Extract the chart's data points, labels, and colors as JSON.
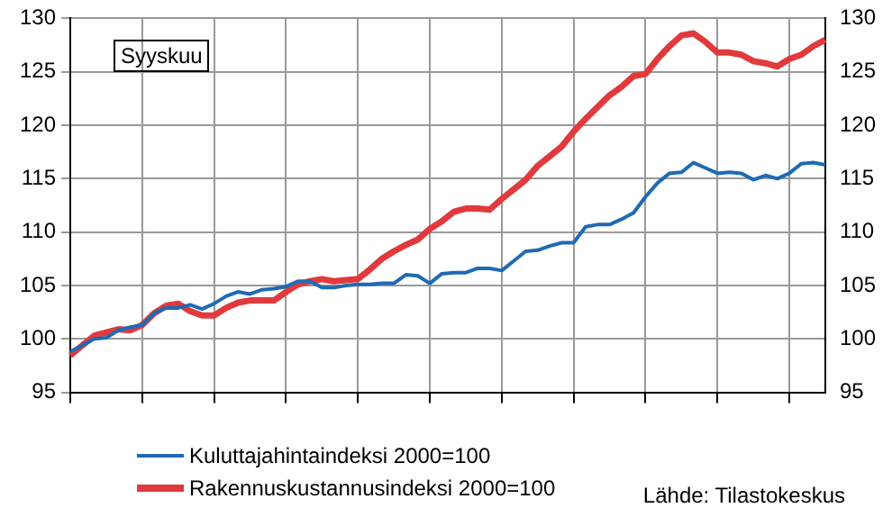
{
  "chart_data": {
    "type": "line",
    "categories": [
      null,
      null,
      null,
      null,
      null,
      null,
      null,
      null,
      null,
      null,
      null,
      null,
      null,
      null,
      null,
      null,
      null,
      null,
      null,
      null,
      null,
      null,
      null,
      null,
      null,
      null,
      null,
      null,
      null,
      null,
      null,
      null,
      null,
      null,
      null,
      null,
      null,
      null,
      null,
      null,
      null,
      null,
      null,
      null,
      null,
      null,
      null,
      null,
      null,
      null,
      null,
      null,
      null,
      null,
      null,
      null,
      null,
      null,
      null,
      null,
      null,
      null,
      null,
      null
    ],
    "series": [
      {
        "name": "Kuluttajahintaindeksi 2000=100",
        "color": "#1f6ab4",
        "values": [
          98.8,
          99.4,
          100.0,
          100.1,
          100.8,
          101.1,
          101.3,
          102.4,
          102.9,
          102.9,
          103.2,
          102.8,
          103.3,
          104.0,
          104.4,
          104.2,
          104.6,
          104.7,
          104.9,
          105.4,
          105.4,
          104.8,
          104.8,
          105.0,
          105.1,
          105.1,
          105.2,
          105.2,
          106.0,
          105.9,
          105.2,
          106.1,
          106.2,
          106.2,
          106.6,
          106.6,
          106.4,
          107.3,
          108.2,
          108.3,
          108.7,
          109.0,
          109.0,
          110.5,
          110.7,
          110.7,
          111.2,
          111.8,
          113.3,
          114.6,
          115.5,
          115.6,
          116.5,
          116.0,
          115.5,
          115.6,
          115.5,
          114.9,
          115.3,
          115.0,
          115.5,
          116.4,
          116.5,
          116.3
        ]
      },
      {
        "name": "Rakennuskustannusindeksi 2000=100",
        "color": "#e03a3c",
        "values": [
          98.45,
          99.4,
          100.3,
          100.6,
          100.9,
          100.8,
          101.3,
          102.4,
          103.1,
          103.3,
          102.6,
          102.2,
          102.2,
          102.9,
          103.4,
          103.6,
          103.6,
          103.6,
          104.4,
          105.1,
          105.4,
          105.6,
          105.4,
          105.5,
          105.6,
          106.5,
          107.5,
          108.2,
          108.8,
          109.3,
          110.3,
          111.0,
          111.9,
          112.2,
          112.2,
          112.1,
          113.1,
          114.0,
          114.9,
          116.2,
          117.1,
          118.0,
          119.4,
          120.6,
          121.7,
          122.8,
          123.6,
          124.6,
          124.8,
          126.2,
          127.4,
          128.4,
          128.6,
          127.8,
          126.8,
          126.8,
          126.6,
          126.0,
          125.8,
          125.5,
          126.2,
          126.6,
          127.4,
          128.0
        ]
      }
    ],
    "ylim": [
      95,
      130
    ],
    "yticks": [
      95,
      100,
      105,
      110,
      115,
      120,
      125,
      130
    ],
    "y2lim": [
      95,
      130
    ],
    "y2ticks": [
      95,
      100,
      105,
      110,
      115,
      120,
      125,
      130
    ],
    "grid": true,
    "legend": "bottom",
    "marker": "none",
    "line_style": "solid",
    "annotations": [
      "Syyskuu",
      "Lähde: Tilastokeskus"
    ]
  }
}
